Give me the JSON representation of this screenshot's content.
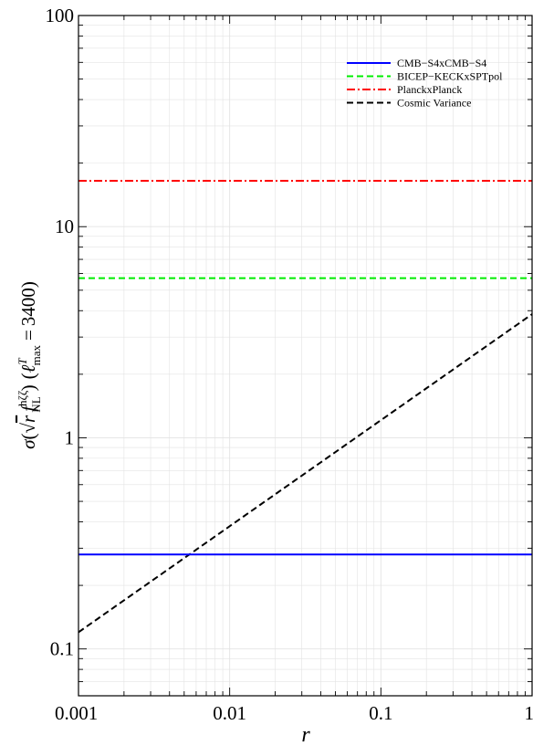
{
  "chart_data": {
    "type": "line",
    "title": "",
    "xlabel": "r",
    "ylabel_parts": {
      "sigma": "σ",
      "open": "(",
      "sqrt": "√",
      "r": "r",
      "f": "f",
      "f_sup": "hζζ",
      "f_sub": "NL",
      "close": ")",
      "paren_open": "(",
      "ell": "ℓ",
      "ell_sup": "T",
      "ell_sub": "max",
      "equals": "=",
      "value": "3400",
      "paren_close": ")"
    },
    "x_scale": "log",
    "y_scale": "log",
    "xlim": [
      0.001,
      1
    ],
    "ylim": [
      0.06,
      100
    ],
    "x_ticks": [
      {
        "value": 0.001,
        "label": "0.001"
      },
      {
        "value": 0.01,
        "label": "0.01"
      },
      {
        "value": 0.1,
        "label": "0.1"
      },
      {
        "value": 1,
        "label": "1"
      }
    ],
    "y_ticks": [
      {
        "value": 0.1,
        "label": "0.1"
      },
      {
        "value": 1,
        "label": "1"
      },
      {
        "value": 10,
        "label": "10"
      },
      {
        "value": 100,
        "label": "100"
      }
    ],
    "grid": true,
    "legend_position": "top-right",
    "series": [
      {
        "name": "CMB−S4xCMB−S4",
        "color": "#0000ff",
        "style": "solid",
        "x": [
          0.001,
          1
        ],
        "y": [
          0.28,
          0.28
        ]
      },
      {
        "name": "BICEP−KECKxSPTpol",
        "color": "#00ee00",
        "style": "dashed",
        "x": [
          0.001,
          1
        ],
        "y": [
          5.7,
          5.7
        ]
      },
      {
        "name": "PlanckxPlanck",
        "color": "#ff0000",
        "style": "dashdot",
        "x": [
          0.001,
          1
        ],
        "y": [
          16.5,
          16.5
        ]
      },
      {
        "name": "Cosmic Variance",
        "color": "#000000",
        "style": "dashed",
        "x": [
          0.001,
          1
        ],
        "y": [
          0.12,
          3.85
        ]
      }
    ]
  }
}
